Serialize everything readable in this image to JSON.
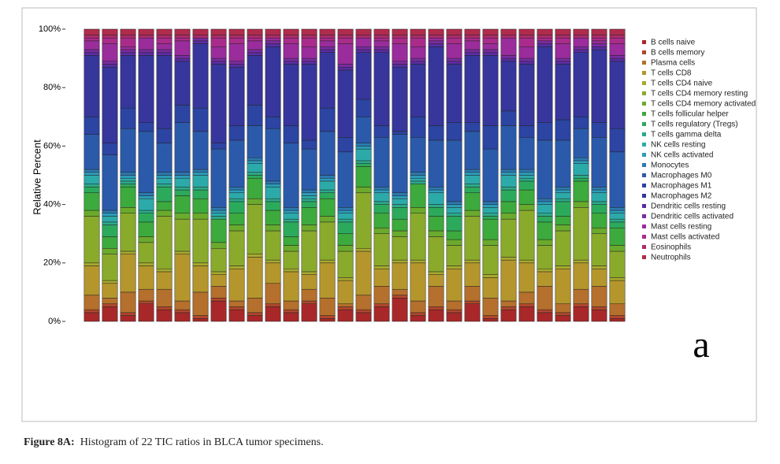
{
  "chart_data": {
    "type": "stacked_bar",
    "panel_label": "a",
    "y_label": "Relative Percent",
    "categories": [
      null,
      null,
      null,
      null,
      null,
      null,
      null,
      null,
      null,
      null,
      null,
      null,
      null,
      null,
      null,
      null,
      null,
      null,
      null,
      null,
      null,
      null,
      null,
      null,
      null,
      null,
      null,
      null,
      null,
      null
    ],
    "ylim": [
      0,
      100
    ],
    "yticks": [
      {
        "value": 0,
        "label": "0%"
      },
      {
        "value": 20,
        "label": "20%"
      },
      {
        "value": 40,
        "label": "40%"
      },
      {
        "value": 60,
        "label": "60%"
      },
      {
        "value": 80,
        "label": "80%"
      },
      {
        "value": 100,
        "label": "100%"
      }
    ],
    "series": [
      {
        "name": "B cells naive",
        "color": "#a8282a",
        "values": [
          3,
          5,
          2,
          6,
          4,
          3,
          1,
          7,
          4,
          2,
          5,
          3,
          6,
          1,
          4,
          3,
          5,
          8,
          2,
          4,
          3,
          6,
          1,
          4,
          5,
          3,
          2,
          5,
          4,
          1
        ]
      },
      {
        "name": "B cells memory",
        "color": "#b2462c",
        "values": [
          1,
          1,
          1,
          1,
          1,
          1,
          1,
          1,
          1,
          1,
          1,
          1,
          1,
          1,
          1,
          1,
          1,
          1,
          1,
          1,
          1,
          1,
          1,
          1,
          1,
          1,
          1,
          1,
          1,
          1
        ]
      },
      {
        "name": "Plasma cells",
        "color": "#b4702c",
        "values": [
          5,
          2,
          7,
          4,
          6,
          3,
          8,
          4,
          2,
          5,
          7,
          3,
          4,
          6,
          1,
          5,
          6,
          2,
          4,
          7,
          3,
          5,
          6,
          2,
          4,
          8,
          3,
          5,
          7,
          4
        ]
      },
      {
        "name": "T cells CD8",
        "color": "#b4962c",
        "values": [
          10,
          5,
          13,
          8,
          6,
          16,
          9,
          4,
          11,
          14,
          7,
          10,
          5,
          12,
          8,
          15,
          6,
          9,
          13,
          4,
          11,
          8,
          7,
          14,
          10,
          5,
          12,
          9,
          6,
          8
        ]
      },
      {
        "name": "T cells CD4 naive",
        "color": "#a8aa2c",
        "values": [
          1,
          1,
          1,
          1,
          1,
          1,
          1,
          1,
          1,
          1,
          1,
          1,
          1,
          1,
          1,
          1,
          1,
          1,
          1,
          1,
          1,
          1,
          1,
          1,
          1,
          1,
          1,
          1,
          1,
          1
        ]
      },
      {
        "name": "T cells CD4 memory resting",
        "color": "#8aaa2c",
        "values": [
          16,
          9,
          13,
          7,
          18,
          11,
          15,
          8,
          12,
          17,
          10,
          6,
          14,
          13,
          9,
          19,
          11,
          8,
          16,
          12,
          7,
          15,
          10,
          13,
          17,
          8,
          12,
          18,
          11,
          9
        ]
      },
      {
        "name": "T cells CD4 memory activated",
        "color": "#6aaa2c",
        "values": [
          2,
          2,
          2,
          2,
          2,
          2,
          2,
          2,
          2,
          2,
          2,
          2,
          2,
          2,
          2,
          2,
          2,
          2,
          2,
          2,
          2,
          2,
          2,
          2,
          2,
          2,
          2,
          2,
          2,
          2
        ]
      },
      {
        "name": "T cells follicular helper",
        "color": "#3caa3c",
        "values": [
          6,
          4,
          7,
          5,
          3,
          6,
          5,
          8,
          4,
          7,
          5,
          3,
          6,
          6,
          4,
          7,
          5,
          4,
          8,
          5,
          3,
          6,
          7,
          4,
          5,
          6,
          3,
          7,
          5,
          6
        ]
      },
      {
        "name": "T cells regulatory (Tregs)",
        "color": "#2caa5c",
        "values": [
          2,
          4,
          1,
          3,
          5,
          2,
          3,
          0,
          4,
          1,
          3,
          5,
          2,
          2,
          4,
          1,
          3,
          4,
          0,
          3,
          5,
          2,
          1,
          4,
          3,
          2,
          5,
          1,
          3,
          2
        ]
      },
      {
        "name": "T cells gamma delta",
        "color": "#2caa8a",
        "values": [
          1,
          1,
          1,
          1,
          1,
          1,
          1,
          1,
          1,
          1,
          1,
          1,
          1,
          1,
          1,
          1,
          1,
          1,
          1,
          1,
          1,
          1,
          1,
          1,
          1,
          1,
          1,
          1,
          1,
          1
        ]
      },
      {
        "name": "NK cells resting",
        "color": "#2caaaa",
        "values": [
          3,
          2,
          1,
          4,
          2,
          3,
          4,
          1,
          2,
          3,
          4,
          2,
          1,
          3,
          2,
          4,
          3,
          2,
          1,
          4,
          2,
          3,
          2,
          4,
          1,
          3,
          2,
          4,
          3,
          2
        ]
      },
      {
        "name": "NK cells activated",
        "color": "#2c9cba",
        "values": [
          1,
          1,
          1,
          1,
          1,
          1,
          1,
          1,
          1,
          1,
          1,
          1,
          1,
          1,
          1,
          1,
          1,
          1,
          1,
          1,
          1,
          1,
          1,
          1,
          1,
          1,
          1,
          1,
          1,
          1
        ]
      },
      {
        "name": "Monocytes",
        "color": "#2c7ab2",
        "values": [
          1,
          1,
          1,
          1,
          1,
          1,
          1,
          1,
          1,
          1,
          1,
          1,
          1,
          1,
          1,
          1,
          1,
          1,
          1,
          1,
          1,
          1,
          1,
          1,
          1,
          1,
          1,
          1,
          1,
          1
        ]
      },
      {
        "name": "Macrophages M0",
        "color": "#2c5aaa",
        "values": [
          12,
          19,
          15,
          21,
          10,
          17,
          13,
          20,
          16,
          11,
          18,
          22,
          14,
          15,
          19,
          9,
          17,
          20,
          12,
          16,
          21,
          13,
          18,
          15,
          11,
          20,
          16,
          10,
          17,
          19
        ]
      },
      {
        "name": "Macrophages M1",
        "color": "#2c44a2",
        "values": [
          6,
          4,
          7,
          3,
          5,
          6,
          8,
          2,
          5,
          7,
          4,
          6,
          3,
          8,
          5,
          6,
          4,
          1,
          7,
          5,
          6,
          3,
          8,
          5,
          4,
          6,
          7,
          4,
          5,
          8
        ]
      },
      {
        "name": "Macrophages M2",
        "color": "#36369c",
        "values": [
          21,
          26,
          18,
          23,
          25,
          15,
          22,
          27,
          20,
          17,
          24,
          21,
          26,
          19,
          23,
          16,
          25,
          22,
          18,
          27,
          20,
          23,
          24,
          17,
          21,
          26,
          19,
          22,
          25,
          23
        ]
      },
      {
        "name": "Dendritic cells resting",
        "color": "#5a2ca2",
        "values": [
          1,
          1,
          1,
          1,
          1,
          1,
          1,
          1,
          1,
          1,
          1,
          1,
          1,
          1,
          1,
          1,
          1,
          1,
          1,
          1,
          1,
          1,
          1,
          1,
          1,
          1,
          1,
          1,
          1,
          1
        ]
      },
      {
        "name": "Dendritic cells activated",
        "color": "#7a2ca2",
        "values": [
          1,
          1,
          1,
          1,
          1,
          1,
          1,
          1,
          1,
          1,
          1,
          1,
          1,
          1,
          1,
          1,
          1,
          1,
          1,
          1,
          1,
          1,
          1,
          1,
          1,
          1,
          1,
          1,
          1,
          1
        ]
      },
      {
        "name": "Mast cells resting",
        "color": "#9a2c9c",
        "values": [
          3,
          6,
          1,
          4,
          2,
          5,
          0,
          4,
          6,
          3,
          1,
          5,
          4,
          2,
          7,
          3,
          2,
          6,
          4,
          1,
          5,
          3,
          2,
          6,
          4,
          0,
          5,
          3,
          1,
          4
        ]
      },
      {
        "name": "Mast cells activated",
        "color": "#aa2c8a",
        "values": [
          1,
          2,
          3,
          0,
          2,
          1,
          0,
          3,
          2,
          1,
          0,
          2,
          3,
          1,
          2,
          0,
          1,
          2,
          3,
          0,
          2,
          1,
          2,
          0,
          3,
          1,
          2,
          0,
          1,
          2
        ]
      },
      {
        "name": "Eosinophils",
        "color": "#b02c6c",
        "values": [
          1,
          1,
          1,
          1,
          1,
          1,
          1,
          1,
          1,
          1,
          1,
          1,
          1,
          1,
          1,
          1,
          1,
          1,
          1,
          1,
          1,
          1,
          1,
          1,
          1,
          1,
          1,
          1,
          1,
          1
        ]
      },
      {
        "name": "Neutrophils",
        "color": "#b02c4c",
        "values": [
          2,
          2,
          2,
          2,
          2,
          2,
          2,
          2,
          2,
          2,
          2,
          2,
          2,
          2,
          2,
          2,
          2,
          2,
          2,
          2,
          2,
          2,
          2,
          2,
          2,
          2,
          2,
          2,
          2,
          2
        ]
      }
    ]
  },
  "figure_label": "Figure 8A:",
  "caption": "Histogram of 22 TIC ratios in BLCA tumor specimens."
}
